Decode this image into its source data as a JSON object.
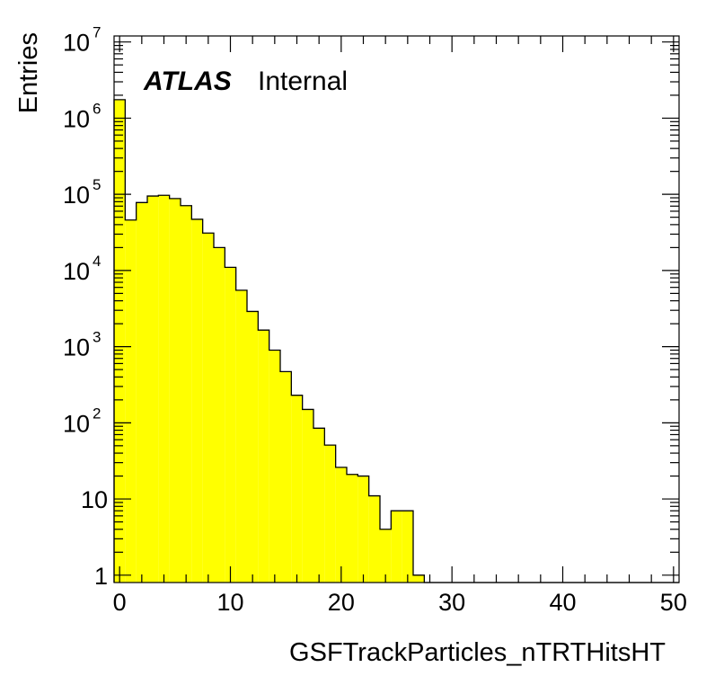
{
  "chart_data": {
    "type": "bar",
    "title": "",
    "xlabel": "GSFTrackParticles_nTRTHitsHT",
    "ylabel": "Entries",
    "annotation": {
      "bold": "ATLAS",
      "normal": "Internal"
    },
    "xlim": [
      -0.5,
      50.5
    ],
    "ylim": [
      0.8,
      12000000
    ],
    "log_y": true,
    "grid": false,
    "fill_color": "#ffff00",
    "edge_color": "#000000",
    "x_ticks": [
      "0",
      "10",
      "20",
      "30",
      "40",
      "50"
    ],
    "y_ticks": [
      {
        "base": "1",
        "exp": ""
      },
      {
        "base": "10",
        "exp": ""
      },
      {
        "base": "10",
        "exp": "2"
      },
      {
        "base": "10",
        "exp": "3"
      },
      {
        "base": "10",
        "exp": "4"
      },
      {
        "base": "10",
        "exp": "5"
      },
      {
        "base": "10",
        "exp": "6"
      },
      {
        "base": "10",
        "exp": "7"
      }
    ],
    "x_bin_centers": [
      0,
      1,
      2,
      3,
      4,
      5,
      6,
      7,
      8,
      9,
      10,
      11,
      12,
      13,
      14,
      15,
      16,
      17,
      18,
      19,
      20,
      21,
      22,
      23,
      24,
      25,
      26,
      27,
      28,
      29,
      30,
      31,
      32,
      33,
      34,
      35,
      36,
      37,
      38,
      39,
      40,
      41,
      42,
      43,
      44,
      45,
      46,
      47,
      48,
      49,
      50
    ],
    "values": [
      1750000,
      46000,
      78000,
      95000,
      97000,
      88000,
      71000,
      47000,
      31000,
      20000,
      11000,
      5500,
      2900,
      1650,
      900,
      470,
      230,
      150,
      85,
      51,
      26,
      21,
      20,
      11,
      4,
      7,
      7,
      1,
      0,
      0,
      0,
      0,
      0,
      0,
      0,
      0,
      0,
      0,
      0,
      0,
      0,
      0,
      0,
      0,
      0,
      0,
      0,
      0,
      0,
      0,
      0
    ]
  }
}
